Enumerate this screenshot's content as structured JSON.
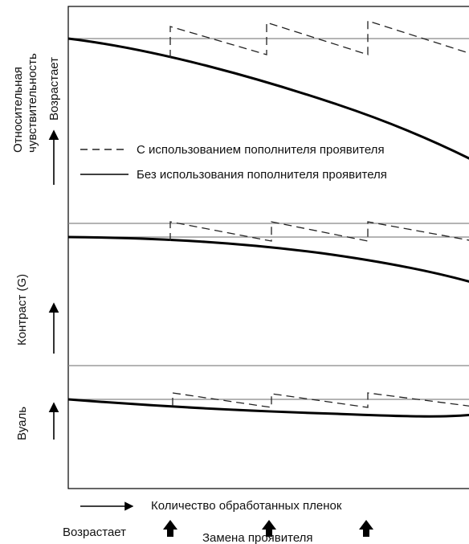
{
  "legend": {
    "with_replenisher": "С использованием пополнителя проявителя",
    "without_replenisher": "Без использования пополнителя проявителя"
  },
  "panels": [
    {
      "id": "sensitivity",
      "ylabel_line1": "Относительная",
      "ylabel_line2": "чувствительность",
      "increase_label": "Возрастает"
    },
    {
      "id": "contrast",
      "ylabel": "Контраст (G)"
    },
    {
      "id": "fog",
      "ylabel": "Вуаль"
    }
  ],
  "x_axis": {
    "label": "Количество обработанных пленок",
    "increase_label": "Возрастает",
    "markers_label": "Замена проявителя"
  }
}
